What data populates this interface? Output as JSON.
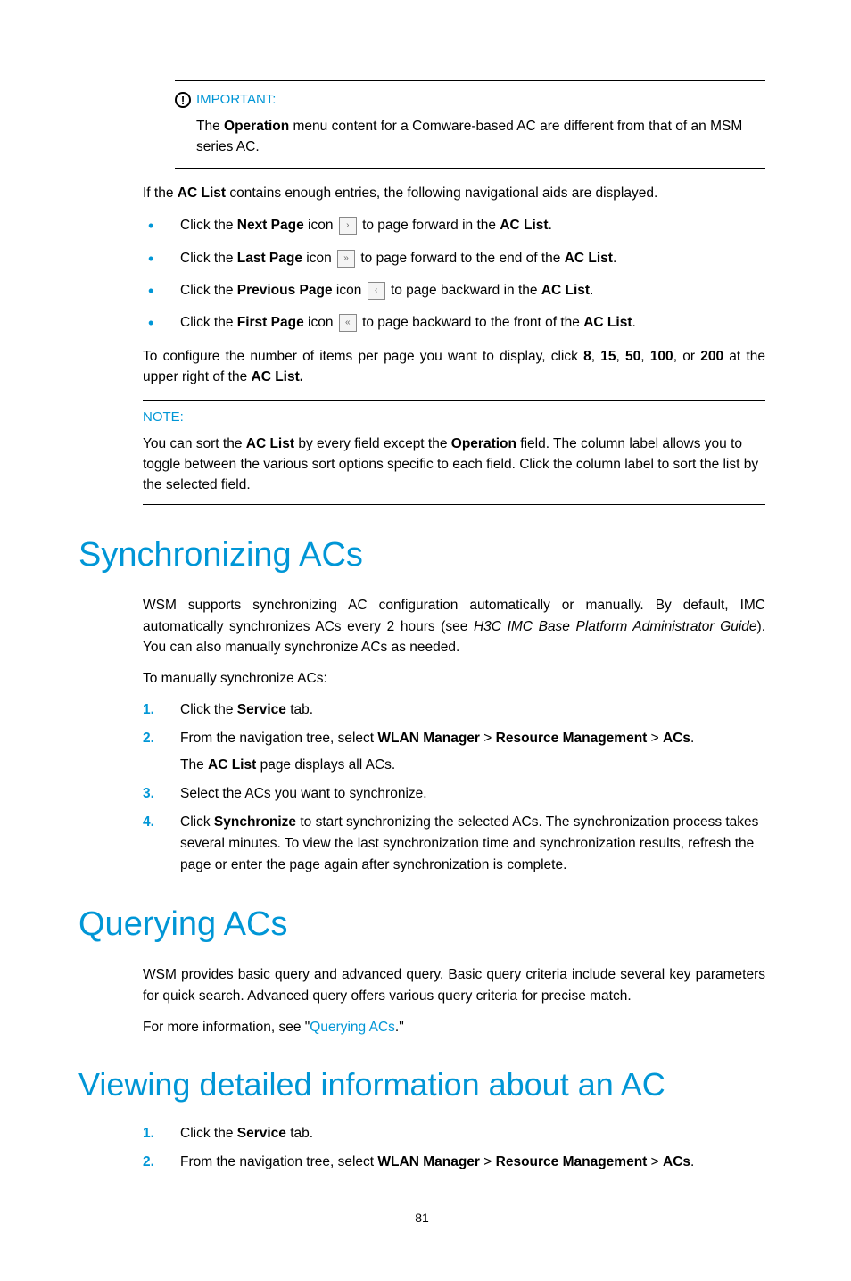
{
  "colors": {
    "accent": "#0096d6",
    "text": "#000000",
    "icon_border": "#888888",
    "icon_bg": "#f4f4f4",
    "background": "#ffffff"
  },
  "typography": {
    "body_fontsize_pt": 11.5,
    "h1_fontsize_pt": 28,
    "note_header_fontsize_pt": 11,
    "font_family": "Arial"
  },
  "important": {
    "label": "IMPORTANT:",
    "body_pre": "The ",
    "body_bold1": "Operation",
    "body_post": " menu content for a Comware-based AC are different from that of an MSM series AC."
  },
  "intro": {
    "pre": "If the ",
    "bold": "AC List",
    "post": " contains enough entries, the following navigational aids are displayed."
  },
  "nav_items": [
    {
      "pre": "Click the ",
      "bold": "Next Page",
      "mid": " icon ",
      "glyph": "›",
      "post_pre": " to page forward in the ",
      "post_bold": "AC List",
      "post_end": "."
    },
    {
      "pre": "Click the ",
      "bold": "Last Page",
      "mid": " icon ",
      "glyph": "»",
      "post_pre": " to page forward to the end of the ",
      "post_bold": "AC List",
      "post_end": "."
    },
    {
      "pre": "Click the ",
      "bold": "Previous Page",
      "mid": " icon ",
      "glyph": "‹",
      "post_pre": " to page backward in the ",
      "post_bold": "AC List",
      "post_end": "."
    },
    {
      "pre": "Click the ",
      "bold": "First Page",
      "mid": " icon ",
      "glyph": "«",
      "post_pre": " to page backward to the front of the ",
      "post_bold": "AC List",
      "post_end": "."
    }
  ],
  "config_para": {
    "pre": "To configure the number of items per page you want to display, click ",
    "n1": "8",
    "sep": ", ",
    "n2": "15",
    "n3": "50",
    "n4": "100",
    "or": ", or ",
    "n5": "200",
    "post_pre": " at the upper right of the ",
    "post_bold": "AC List.",
    "post_end": ""
  },
  "note": {
    "label": "NOTE:",
    "body_p1": "You can sort the ",
    "b1": "AC List",
    "body_p2": " by every field except the ",
    "b2": "Operation",
    "body_p3": " field. The column label allows you to toggle between the various sort options specific to each field. Click the column label to sort the list by the selected field."
  },
  "sync": {
    "heading": "Synchronizing ACs",
    "para1_pre": "WSM supports synchronizing AC configuration automatically or manually. By default, IMC automatically synchronizes ACs every 2 hours (see ",
    "para1_italic": "H3C IMC Base Platform Administrator Guide",
    "para1_post": "). You can also manually synchronize ACs as needed.",
    "para2": "To manually synchronize ACs:",
    "steps": {
      "s1_pre": "Click the ",
      "s1_b": "Service",
      "s1_post": " tab.",
      "s2_pre": "From the navigation tree, select ",
      "s2_b1": "WLAN Manager",
      "gt": " > ",
      "s2_b2": "Resource Management",
      "s2_b3": "ACs",
      "s2_post": ".",
      "s2_sub_pre": "The ",
      "s2_sub_b": "AC List",
      "s2_sub_post": " page displays all ACs.",
      "s3": "Select the ACs you want to synchronize.",
      "s4_pre": "Click ",
      "s4_b": "Synchronize",
      "s4_post": " to start synchronizing the selected ACs. The synchronization process takes several minutes. To view the last synchronization time and synchronization results, refresh the page or enter the page again after synchronization is complete."
    }
  },
  "query": {
    "heading": "Querying ACs",
    "para1": "WSM provides basic query and advanced query. Basic query criteria include several key parameters for quick search. Advanced query offers various query criteria for precise match.",
    "para2_pre": "For more information, see \"",
    "para2_link": "Querying ACs",
    "para2_post": ".\""
  },
  "view": {
    "heading": "Viewing detailed information about an AC",
    "steps": {
      "s1_pre": "Click the ",
      "s1_b": "Service",
      "s1_post": " tab.",
      "s2_pre": "From the navigation tree, select ",
      "s2_b1": "WLAN Manager",
      "gt": " > ",
      "s2_b2": "Resource Management",
      "s2_b3": "ACs",
      "s2_post": "."
    }
  },
  "page_number": "81"
}
